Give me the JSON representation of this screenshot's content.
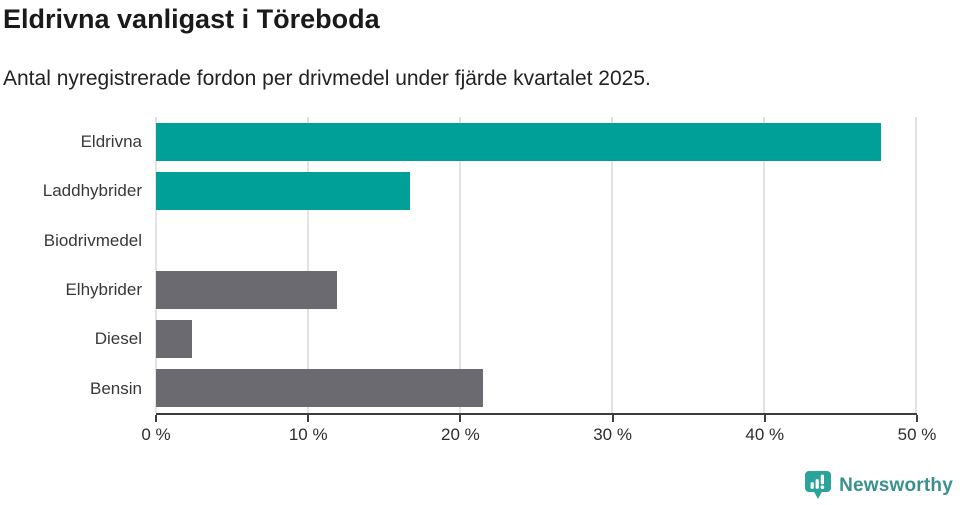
{
  "header": {
    "title": "Eldrivna vanligast i Töreboda",
    "subtitle": "Antal nyregistrerade fordon per drivmedel under fjärde kvartalet 2025."
  },
  "chart_data": {
    "type": "bar",
    "orientation": "horizontal",
    "title": "Eldrivna vanligast i Töreboda",
    "subtitle": "Antal nyregistrerade fordon per drivmedel under fjärde kvartalet 2025.",
    "categories": [
      "Eldrivna",
      "Laddhybrider",
      "Biodrivmedel",
      "Elhybrider",
      "Diesel",
      "Bensin"
    ],
    "values": [
      47.7,
      16.7,
      0,
      11.9,
      2.4,
      21.5
    ],
    "unit": "%",
    "bar_colors": [
      "#00a099",
      "#00a099",
      "#00a099",
      "#6b6a71",
      "#6b6a71",
      "#6b6a71"
    ],
    "xlim": [
      0,
      50
    ],
    "xticks": [
      0,
      10,
      20,
      30,
      40,
      50
    ],
    "xtick_labels": [
      "0 %",
      "10 %",
      "20 %",
      "30 %",
      "40 %",
      "50 %"
    ],
    "grid": "vertical",
    "legend": "none"
  },
  "colors": {
    "accent_teal": "#00a099",
    "neutral_gray": "#6b6a71",
    "gridline": "#e3e3e3",
    "axis": "#3d3d3d",
    "brand": "#38918e"
  },
  "footer": {
    "brand": "Newsworthy"
  }
}
